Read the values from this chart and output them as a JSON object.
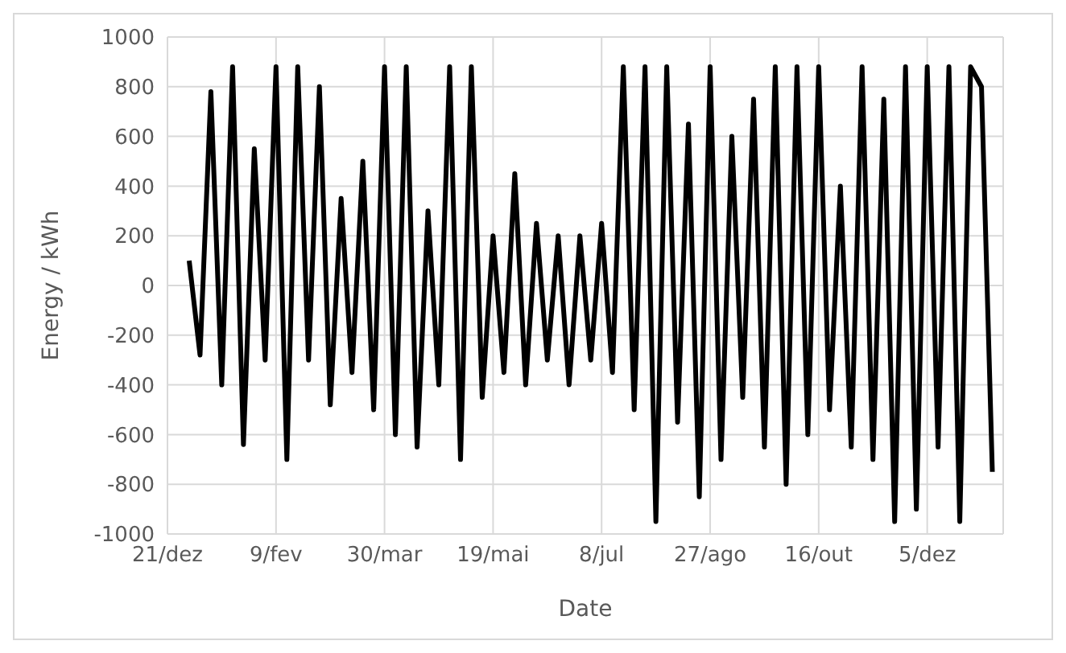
{
  "chart_data": {
    "type": "line",
    "xlabel": "Date",
    "ylabel": "Energy / kWh",
    "categories": [
      "21/dez",
      null,
      null,
      null,
      null,
      null,
      null,
      null,
      null,
      null,
      "9/fev",
      null,
      null,
      null,
      null,
      null,
      null,
      null,
      null,
      null,
      "30/mar",
      null,
      null,
      null,
      null,
      null,
      null,
      null,
      null,
      null,
      "19/mai",
      null,
      null,
      null,
      null,
      null,
      null,
      null,
      null,
      null,
      "8/jul",
      null,
      null,
      null,
      null,
      null,
      null,
      null,
      null,
      null,
      "27/ago",
      null,
      null,
      null,
      null,
      null,
      null,
      null,
      null,
      null,
      "16/out",
      null,
      null,
      null,
      null,
      null,
      null,
      null,
      null,
      null,
      "5/dez",
      null,
      null,
      null,
      null,
      null,
      null,
      null
    ],
    "series": [
      {
        "color": "#000000",
        "values": [
          null,
          null,
          100,
          -280,
          780,
          -400,
          880,
          -640,
          550,
          -300,
          880,
          -700,
          880,
          -300,
          800,
          -480,
          350,
          -350,
          500,
          -500,
          880,
          -600,
          880,
          -650,
          300,
          -400,
          880,
          -700,
          880,
          -450,
          200,
          -350,
          450,
          -400,
          250,
          -300,
          200,
          -400,
          200,
          -300,
          250,
          -350,
          880,
          -500,
          880,
          -950,
          880,
          -550,
          650,
          -850,
          880,
          -700,
          600,
          -450,
          750,
          -650,
          880,
          -800,
          880,
          -600,
          880,
          -500,
          400,
          -650,
          880,
          -700,
          750,
          -950,
          880,
          -900,
          880,
          -650,
          880,
          -950,
          880,
          800,
          -750,
          null
        ]
      }
    ],
    "ylim": [
      -1000,
      1000
    ],
    "yticks": [
      -1000,
      -800,
      -600,
      -400,
      -200,
      0,
      200,
      400,
      600,
      800,
      1000
    ],
    "grid": true,
    "legend": false,
    "marker": "none",
    "line_style": "solid"
  }
}
